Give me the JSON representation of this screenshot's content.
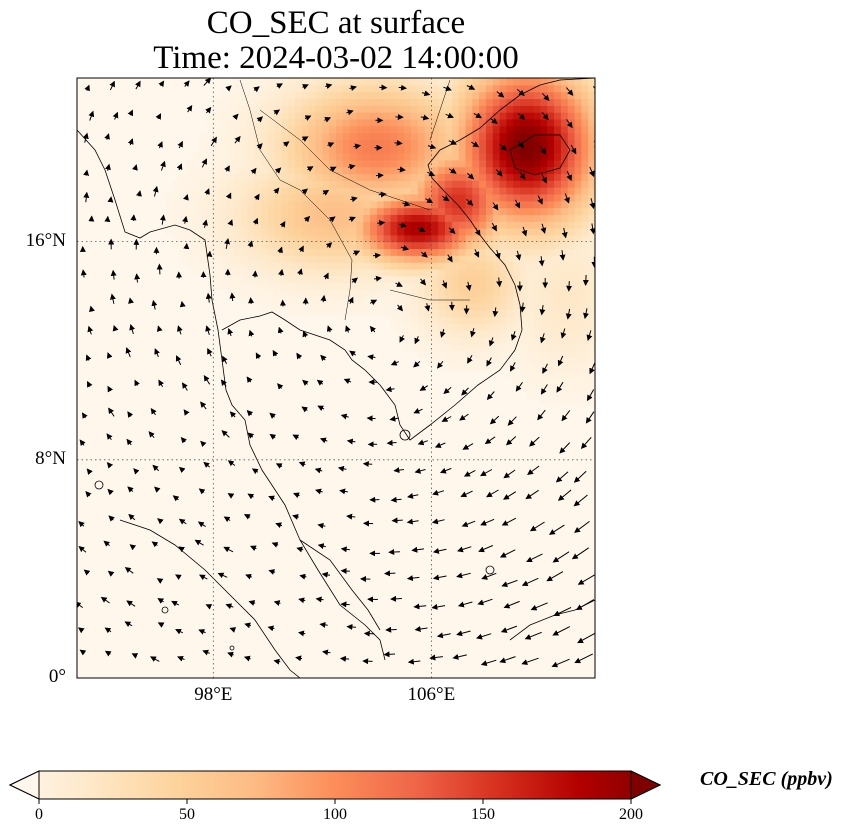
{
  "title_line_1": "CO_SEC at surface",
  "title_line_2": "Time: 2024-03-02 14:00:00",
  "map": {
    "lon_range": [
      93,
      112
    ],
    "lat_range": [
      0,
      22
    ],
    "lat_ticks": [
      {
        "value": 16,
        "label": "16°N"
      },
      {
        "value": 8,
        "label": "8°N"
      },
      {
        "value": 0,
        "label": "0°"
      }
    ],
    "lon_ticks": [
      {
        "value": 98,
        "label": "98°E"
      },
      {
        "value": 106,
        "label": "106°E"
      }
    ],
    "gridlines": "dotted",
    "plumes": [
      {
        "lon": 109.5,
        "lat": 19.5,
        "sigma_lon": 1.8,
        "sigma_lat": 2.0,
        "value": 200
      },
      {
        "lon": 105.5,
        "lat": 16.5,
        "sigma_lon": 1.6,
        "sigma_lat": 0.9,
        "value": 180
      },
      {
        "lon": 104.0,
        "lat": 19.5,
        "sigma_lon": 2.4,
        "sigma_lat": 1.6,
        "value": 110
      },
      {
        "lon": 107.0,
        "lat": 17.5,
        "sigma_lon": 1.3,
        "sigma_lat": 1.3,
        "value": 150
      },
      {
        "lon": 102.5,
        "lat": 17.0,
        "sigma_lon": 2.5,
        "sigma_lat": 1.5,
        "value": 70
      },
      {
        "lon": 107.5,
        "lat": 14.5,
        "sigma_lon": 1.4,
        "sigma_lat": 1.4,
        "value": 55
      },
      {
        "lon": 111.0,
        "lat": 14.0,
        "sigma_lon": 1.5,
        "sigma_lat": 2.0,
        "value": 25
      }
    ]
  },
  "colorbar": {
    "colormap": "OrRd",
    "min": 0,
    "max": 200,
    "ticks": [
      0,
      50,
      100,
      150,
      200
    ],
    "label": "CO_SEC (ppbv)",
    "extend": "both",
    "colors": [
      "#fff7ec",
      "#fee8c8",
      "#fdd49e",
      "#fdbb84",
      "#fc8d59",
      "#ef6548",
      "#d7301f",
      "#b30000",
      "#7f0000"
    ]
  }
}
